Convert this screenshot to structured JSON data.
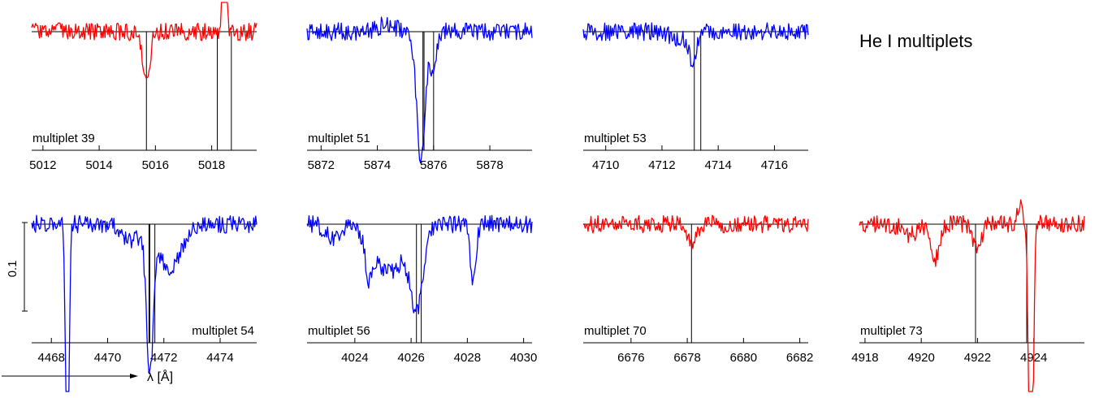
{
  "figure": {
    "title": "He I multiplets",
    "xlabel": "λ [Å]",
    "scale_bar_label": "0.1"
  },
  "chart_data": [
    {
      "type": "line",
      "label": "multiplet 39",
      "xlim": [
        5011.6,
        5019.6
      ],
      "x_ticks": [
        5012,
        5014,
        5016,
        5018
      ],
      "color": "#ff0000",
      "line_positions": [
        5015.68,
        5018.2,
        5018.7
      ],
      "features": [
        [
          5015.68,
          0.06,
          0.12
        ],
        [
          5018.45,
          -0.4,
          0.05
        ]
      ]
    },
    {
      "type": "line",
      "label": "multiplet 51",
      "xlim": [
        5871.5,
        5879.5
      ],
      "x_ticks": [
        5872,
        5874,
        5876,
        5878
      ],
      "color": "#0000ff",
      "line_positions": [
        5875.62,
        5875.66,
        5876.0
      ],
      "features": [
        [
          5875.55,
          0.15,
          0.15
        ],
        [
          5876.0,
          0.05,
          0.1
        ],
        [
          5874.3,
          -0.008,
          0.3
        ]
      ]
    },
    {
      "type": "line",
      "label": "multiplet 53",
      "xlim": [
        4709.2,
        4717.2
      ],
      "x_ticks": [
        4710,
        4712,
        4714,
        4716
      ],
      "color": "#0000ff",
      "line_positions": [
        4713.15,
        4713.38
      ],
      "features": [
        [
          4713.1,
          0.035,
          0.12
        ],
        [
          4712.6,
          0.01,
          0.25
        ]
      ]
    },
    {
      "type": "line",
      "label": "multiplet 54",
      "xlim": [
        4467.3,
        4475.3
      ],
      "x_ticks": [
        4468,
        4470,
        4472,
        4474
      ],
      "color": "#0000ff",
      "line_positions": [
        4471.47,
        4471.5,
        4471.68
      ],
      "features": [
        [
          4468.57,
          0.3,
          0.06
        ],
        [
          4471.5,
          0.16,
          0.12
        ],
        [
          4472.2,
          0.05,
          0.4
        ],
        [
          4470.8,
          0.02,
          0.3
        ]
      ]
    },
    {
      "type": "line",
      "label": "multiplet 56",
      "xlim": [
        4022.3,
        4030.3
      ],
      "x_ticks": [
        4024,
        4026,
        4028,
        4030
      ],
      "color": "#0000ff",
      "line_positions": [
        4026.19,
        4026.36
      ],
      "features": [
        [
          4026.2,
          0.09,
          0.22
        ],
        [
          4025.2,
          0.055,
          0.55
        ],
        [
          4024.5,
          0.04,
          0.12
        ],
        [
          4028.2,
          0.07,
          0.1
        ],
        [
          4023.2,
          0.015,
          0.25
        ]
      ]
    },
    {
      "type": "line",
      "label": "multiplet 70",
      "xlim": [
        6674.3,
        6682.3
      ],
      "x_ticks": [
        6676,
        6678,
        6680,
        6682
      ],
      "color": "#ff0000",
      "line_positions": [
        6678.15
      ],
      "features": [
        [
          6678.15,
          0.025,
          0.15
        ]
      ]
    },
    {
      "type": "line",
      "label": "multiplet 73",
      "xlim": [
        4917.8,
        4925.8
      ],
      "x_ticks": [
        4918,
        4920,
        4922,
        4924
      ],
      "color": "#ff0000",
      "line_positions": [
        4921.93,
        4923.75
      ],
      "features": [
        [
          4920.5,
          0.04,
          0.15
        ],
        [
          4922.0,
          0.03,
          0.15
        ],
        [
          4919.6,
          0.012,
          0.25
        ],
        [
          4923.9,
          0.4,
          0.07
        ],
        [
          4923.5,
          -0.02,
          0.1
        ]
      ]
    }
  ]
}
